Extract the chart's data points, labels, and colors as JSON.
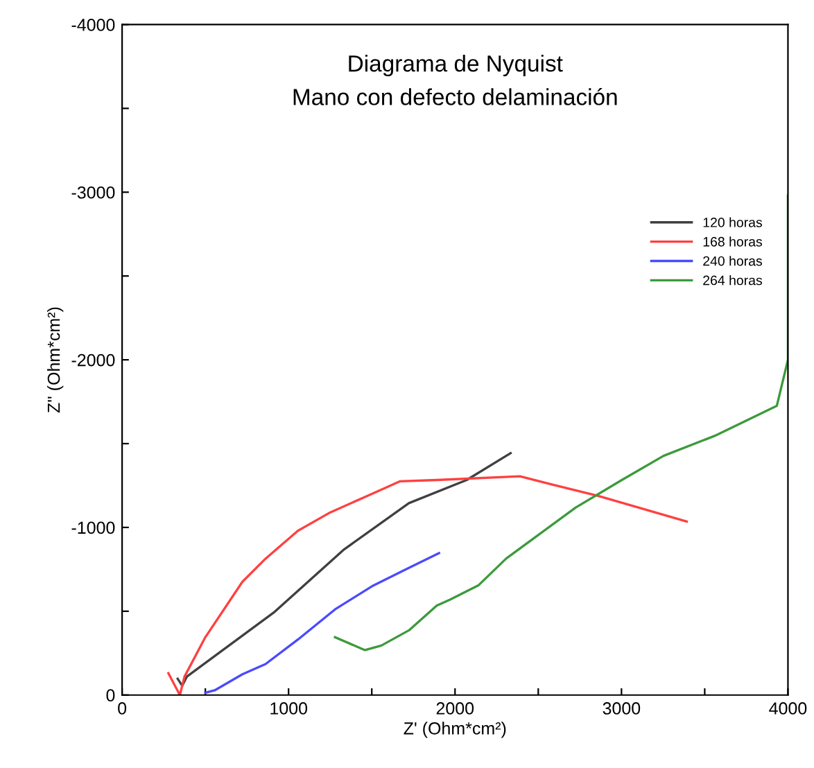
{
  "chart_data": {
    "type": "line",
    "title": "Diagrama de Nyquist",
    "subtitle": "Mano con defecto delaminación",
    "xlabel": "Z' (Ohm*cm²)",
    "ylabel": "Z'' (Ohm*cm²)",
    "xlim": [
      0,
      4000
    ],
    "ylim": [
      0,
      -4000
    ],
    "xticks": [
      0,
      {
        "value": 500,
        "label": null
      },
      1000,
      {
        "value": 1500,
        "label": null
      },
      2000,
      {
        "value": 2500,
        "label": null
      },
      3000,
      {
        "value": 3500,
        "label": null
      },
      4000
    ],
    "yticks": [
      0,
      {
        "value": -500,
        "label": null
      },
      -1000,
      {
        "value": -1500,
        "label": null
      },
      -2000,
      {
        "value": -2500,
        "label": null
      },
      -3000,
      {
        "value": -3500,
        "label": null
      },
      -4000
    ],
    "grid": false,
    "legend": "right",
    "marker": "none",
    "line_style": "solid",
    "series": [
      {
        "name": "120 horas",
        "color": "#404040",
        "x": [
          334,
          361,
          389,
          917,
          1334,
          1723,
          2070,
          2334
        ],
        "values": [
          -97,
          -55,
          -110,
          -497,
          -869,
          -1145,
          -1283,
          -1443
        ]
      },
      {
        "name": "168 horas",
        "color": "#ff4040",
        "x": [
          278,
          347,
          375,
          500,
          723,
          862,
          1056,
          1251,
          1501,
          1668,
          1890,
          2390,
          2585,
          2863,
          3392
        ],
        "values": [
          -130,
          0,
          -110,
          -345,
          -676,
          -814,
          -980,
          -1090,
          -1200,
          -1275,
          -1283,
          -1305,
          -1256,
          -1187,
          -1035
        ]
      },
      {
        "name": "240 horas",
        "color": "#4a4aff",
        "x": [
          500,
          556,
          723,
          862,
          1056,
          1279,
          1501,
          1723,
          1904
        ],
        "values": [
          -14,
          -28,
          -124,
          -185,
          -331,
          -511,
          -649,
          -759,
          -847
        ]
      },
      {
        "name": "264 horas",
        "color": "#3c9a3c",
        "x": [
          1279,
          1459,
          1557,
          1723,
          1890,
          1973,
          2140,
          2307,
          2724,
          3002,
          3253,
          3559,
          3933,
          4000,
          4000
        ],
        "values": [
          -345,
          -268,
          -295,
          -386,
          -533,
          -571,
          -654,
          -814,
          -1118,
          -1283,
          -1427,
          -1546,
          -1725,
          -2000,
          -2980
        ]
      }
    ]
  }
}
